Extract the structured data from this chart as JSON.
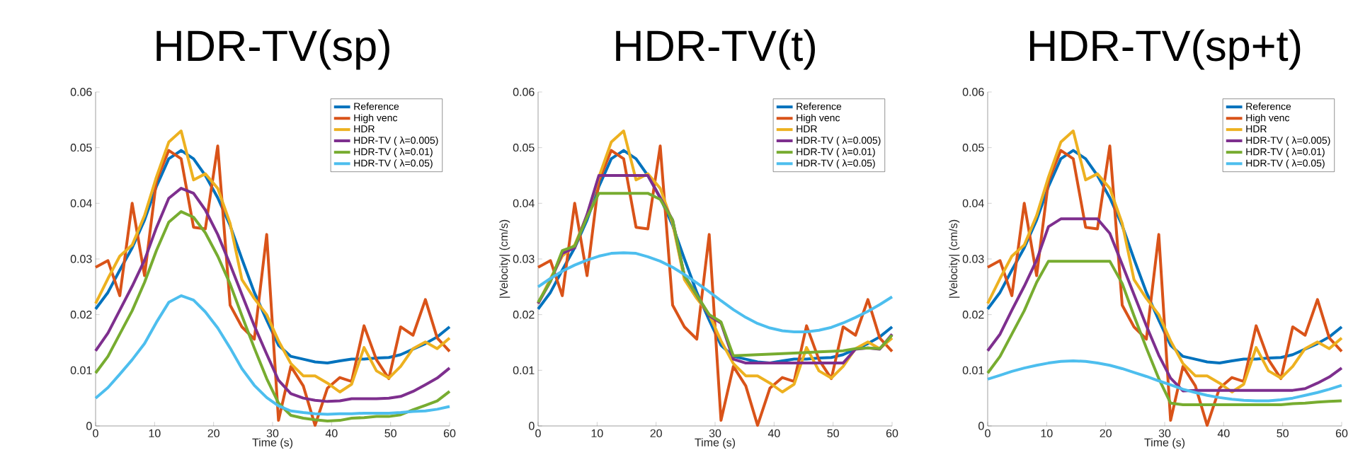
{
  "chart_data": [
    {
      "type": "line",
      "title": "HDR-TV(sp)",
      "xlabel": "Time (s)",
      "legend": "top right",
      "x": [
        0,
        2.1,
        4.1,
        6.2,
        8.3,
        10.3,
        12.4,
        14.5,
        16.6,
        18.6,
        20.7,
        22.8,
        24.8,
        26.9,
        29,
        31,
        33.1,
        35.2,
        37.2,
        39.3,
        41.4,
        43.4,
        45.5,
        47.6,
        49.7,
        51.7,
        53.8,
        55.9,
        57.9,
        60
      ],
      "xlim": [
        0,
        60
      ],
      "ylim": [
        0,
        0.06
      ],
      "xticks": [
        0,
        10,
        20,
        30,
        40,
        50,
        60
      ],
      "yticks": [
        0,
        0.01,
        0.02,
        0.03,
        0.04,
        0.05,
        0.06
      ],
      "series": [
        {
          "name": "Reference",
          "color": "#0072bd",
          "values": [
            0.021,
            0.024,
            0.028,
            0.032,
            0.037,
            0.043,
            0.048,
            0.0495,
            0.048,
            0.045,
            0.041,
            0.036,
            0.03,
            0.024,
            0.019,
            0.0145,
            0.0125,
            0.012,
            0.0115,
            0.0113,
            0.0117,
            0.012,
            0.012,
            0.0122,
            0.0123,
            0.0128,
            0.0138,
            0.0148,
            0.016,
            0.0178
          ]
        },
        {
          "name": "High venc",
          "color": "#d95319",
          "values": [
            0.0285,
            0.0297,
            0.0234,
            0.04,
            0.027,
            0.044,
            0.0495,
            0.048,
            0.0357,
            0.0354,
            0.0503,
            0.0217,
            0.0178,
            0.0156,
            0.0344,
            0.001,
            0.0107,
            0.0072,
            0.0001,
            0.0068,
            0.0087,
            0.008,
            0.018,
            0.0119,
            0.0085,
            0.0178,
            0.0163,
            0.0227,
            0.0158,
            0.0134
          ]
        },
        {
          "name": "HDR",
          "color": "#edb120",
          "values": [
            0.022,
            0.0265,
            0.0305,
            0.0325,
            0.0378,
            0.0447,
            0.051,
            0.053,
            0.0442,
            0.0453,
            0.0427,
            0.0364,
            0.0263,
            0.0229,
            0.02,
            0.0153,
            0.0112,
            0.009,
            0.009,
            0.0077,
            0.0061,
            0.0075,
            0.0141,
            0.0099,
            0.0086,
            0.0107,
            0.0139,
            0.0151,
            0.0139,
            0.0158
          ]
        },
        {
          "name": "HDR-TV ( λ=0.005)",
          "color": "#7e2f8e",
          "values": [
            0.0135,
            0.0167,
            0.0208,
            0.0251,
            0.0298,
            0.0356,
            0.0409,
            0.0427,
            0.0418,
            0.0388,
            0.0344,
            0.029,
            0.0236,
            0.018,
            0.0129,
            0.0082,
            0.0058,
            0.005,
            0.0046,
            0.0044,
            0.0045,
            0.0049,
            0.0049,
            0.0049,
            0.005,
            0.0053,
            0.0062,
            0.0074,
            0.0086,
            0.0104
          ]
        },
        {
          "name": "HDR-TV ( λ=0.01)",
          "color": "#77ac30",
          "values": [
            0.0095,
            0.0125,
            0.0165,
            0.0207,
            0.0258,
            0.0315,
            0.0366,
            0.0385,
            0.0375,
            0.0347,
            0.0305,
            0.0255,
            0.0198,
            0.014,
            0.0085,
            0.0041,
            0.0019,
            0.0014,
            0.0011,
            0.0009,
            0.001,
            0.0014,
            0.0015,
            0.0017,
            0.0017,
            0.002,
            0.0029,
            0.0037,
            0.0045,
            0.0062
          ]
        },
        {
          "name": "HDR-TV ( λ=0.05)",
          "color": "#4dbeee",
          "values": [
            0.005,
            0.0069,
            0.0093,
            0.0119,
            0.0148,
            0.0186,
            0.0222,
            0.0234,
            0.0226,
            0.0205,
            0.0176,
            0.014,
            0.0103,
            0.0073,
            0.0051,
            0.0036,
            0.0027,
            0.0024,
            0.0022,
            0.0021,
            0.0022,
            0.0022,
            0.0023,
            0.0023,
            0.0023,
            0.0024,
            0.0026,
            0.0027,
            0.003,
            0.0035
          ]
        }
      ]
    },
    {
      "type": "line",
      "title": "HDR-TV(t)",
      "xlabel": "Time (s)",
      "ylabel": "|Velocity| (cm/s)",
      "legend": "top right",
      "x": [
        0,
        2.1,
        4.1,
        6.2,
        8.3,
        10.3,
        12.4,
        14.5,
        16.6,
        18.6,
        20.7,
        22.8,
        24.8,
        26.9,
        29,
        31,
        33.1,
        35.2,
        37.2,
        39.3,
        41.4,
        43.4,
        45.5,
        47.6,
        49.7,
        51.7,
        53.8,
        55.9,
        57.9,
        60
      ],
      "xlim": [
        0,
        60
      ],
      "ylim": [
        0,
        0.06
      ],
      "xticks": [
        0,
        10,
        20,
        30,
        40,
        50,
        60
      ],
      "yticks": [
        0,
        0.01,
        0.02,
        0.03,
        0.04,
        0.05,
        0.06
      ],
      "series": [
        {
          "name": "Reference",
          "color": "#0072bd",
          "values": [
            0.021,
            0.024,
            0.028,
            0.032,
            0.037,
            0.043,
            0.048,
            0.0495,
            0.048,
            0.045,
            0.041,
            0.036,
            0.03,
            0.024,
            0.019,
            0.0145,
            0.0125,
            0.012,
            0.0115,
            0.0113,
            0.0117,
            0.012,
            0.012,
            0.0122,
            0.0123,
            0.0128,
            0.0138,
            0.0148,
            0.016,
            0.0178
          ]
        },
        {
          "name": "High venc",
          "color": "#d95319",
          "values": [
            0.0285,
            0.0297,
            0.0234,
            0.04,
            0.027,
            0.044,
            0.0495,
            0.048,
            0.0357,
            0.0354,
            0.0503,
            0.0217,
            0.0178,
            0.0156,
            0.0344,
            0.001,
            0.0107,
            0.0072,
            0.0001,
            0.0068,
            0.0087,
            0.008,
            0.018,
            0.0119,
            0.0085,
            0.0178,
            0.0163,
            0.0227,
            0.0158,
            0.0134
          ]
        },
        {
          "name": "HDR",
          "color": "#edb120",
          "values": [
            0.022,
            0.0265,
            0.0305,
            0.0325,
            0.0378,
            0.0447,
            0.051,
            0.053,
            0.0442,
            0.0453,
            0.0427,
            0.0364,
            0.0263,
            0.0229,
            0.02,
            0.0153,
            0.0112,
            0.009,
            0.009,
            0.0077,
            0.0061,
            0.0075,
            0.0141,
            0.0099,
            0.0086,
            0.0107,
            0.0139,
            0.0151,
            0.0139,
            0.0158
          ]
        },
        {
          "name": "HDR-TV ( λ=0.005)",
          "color": "#7e2f8e",
          "values": [
            0.022,
            0.026,
            0.031,
            0.032,
            0.038,
            0.045,
            0.045,
            0.045,
            0.045,
            0.045,
            0.041,
            0.037,
            0.027,
            0.0235,
            0.0198,
            0.0185,
            0.012,
            0.0113,
            0.0113,
            0.0113,
            0.0113,
            0.0113,
            0.0113,
            0.0113,
            0.0113,
            0.0113,
            0.0138,
            0.014,
            0.0138,
            0.0165
          ]
        },
        {
          "name": "HDR-TV ( λ=0.01)",
          "color": "#77ac30",
          "values": [
            0.0222,
            0.026,
            0.0315,
            0.0323,
            0.0375,
            0.0418,
            0.0418,
            0.0418,
            0.0418,
            0.0418,
            0.0407,
            0.037,
            0.027,
            0.0235,
            0.02,
            0.0187,
            0.0126,
            0.0127,
            0.0128,
            0.0129,
            0.013,
            0.0131,
            0.0132,
            0.0133,
            0.0134,
            0.0135,
            0.0139,
            0.014,
            0.0139,
            0.0163
          ]
        },
        {
          "name": "HDR-TV ( λ=0.05)",
          "color": "#4dbeee",
          "values": [
            0.025,
            0.0265,
            0.0278,
            0.0289,
            0.0298,
            0.0305,
            0.031,
            0.0311,
            0.031,
            0.0304,
            0.0296,
            0.0285,
            0.0272,
            0.0257,
            0.0241,
            0.0225,
            0.0209,
            0.0195,
            0.0184,
            0.0176,
            0.0171,
            0.0169,
            0.0169,
            0.0172,
            0.0177,
            0.0185,
            0.0195,
            0.0206,
            0.0218,
            0.0232
          ]
        }
      ]
    },
    {
      "type": "line",
      "title": "HDR-TV(sp+t)",
      "xlabel": "Time (s)",
      "ylabel": "|Velocity| (cm/s)",
      "legend": "top right",
      "x": [
        0,
        2.1,
        4.1,
        6.2,
        8.3,
        10.3,
        12.4,
        14.5,
        16.6,
        18.6,
        20.7,
        22.8,
        24.8,
        26.9,
        29,
        31,
        33.1,
        35.2,
        37.2,
        39.3,
        41.4,
        43.4,
        45.5,
        47.6,
        49.7,
        51.7,
        53.8,
        55.9,
        57.9,
        60
      ],
      "xlim": [
        0,
        60
      ],
      "ylim": [
        0,
        0.06
      ],
      "xticks": [
        0,
        10,
        20,
        30,
        40,
        50,
        60
      ],
      "yticks": [
        0,
        0.01,
        0.02,
        0.03,
        0.04,
        0.05,
        0.06
      ],
      "series": [
        {
          "name": "Reference",
          "color": "#0072bd",
          "values": [
            0.021,
            0.024,
            0.028,
            0.032,
            0.037,
            0.043,
            0.048,
            0.0495,
            0.048,
            0.045,
            0.041,
            0.036,
            0.03,
            0.024,
            0.019,
            0.0145,
            0.0125,
            0.012,
            0.0115,
            0.0113,
            0.0117,
            0.012,
            0.012,
            0.0122,
            0.0123,
            0.0128,
            0.0138,
            0.0148,
            0.016,
            0.0178
          ]
        },
        {
          "name": "High venc",
          "color": "#d95319",
          "values": [
            0.0285,
            0.0297,
            0.0234,
            0.04,
            0.027,
            0.044,
            0.0495,
            0.048,
            0.0357,
            0.0354,
            0.0503,
            0.0217,
            0.0178,
            0.0156,
            0.0344,
            0.001,
            0.0107,
            0.0072,
            0.0001,
            0.0068,
            0.0087,
            0.008,
            0.018,
            0.0119,
            0.0085,
            0.0178,
            0.0163,
            0.0227,
            0.0158,
            0.0134
          ]
        },
        {
          "name": "HDR",
          "color": "#edb120",
          "values": [
            0.022,
            0.0265,
            0.0305,
            0.0325,
            0.0378,
            0.0447,
            0.051,
            0.053,
            0.0442,
            0.0453,
            0.0427,
            0.0364,
            0.0263,
            0.0229,
            0.02,
            0.0153,
            0.0112,
            0.009,
            0.009,
            0.0077,
            0.0061,
            0.0075,
            0.0141,
            0.0099,
            0.0086,
            0.0107,
            0.0139,
            0.0151,
            0.0139,
            0.0158
          ]
        },
        {
          "name": "HDR-TV ( λ=0.005)",
          "color": "#7e2f8e",
          "values": [
            0.0135,
            0.0165,
            0.0208,
            0.0251,
            0.0298,
            0.0358,
            0.0372,
            0.0372,
            0.0372,
            0.0372,
            0.0346,
            0.029,
            0.0236,
            0.018,
            0.0127,
            0.0086,
            0.0063,
            0.0064,
            0.0064,
            0.0064,
            0.0064,
            0.0064,
            0.0064,
            0.0064,
            0.0064,
            0.0064,
            0.0067,
            0.0077,
            0.0088,
            0.0104
          ]
        },
        {
          "name": "HDR-TV ( λ=0.01)",
          "color": "#77ac30",
          "values": [
            0.0095,
            0.0125,
            0.0165,
            0.0207,
            0.0258,
            0.0296,
            0.0296,
            0.0296,
            0.0296,
            0.0296,
            0.0296,
            0.0256,
            0.0198,
            0.014,
            0.0085,
            0.0041,
            0.0038,
            0.0038,
            0.0038,
            0.0038,
            0.0038,
            0.0038,
            0.0038,
            0.0038,
            0.0038,
            0.004,
            0.0041,
            0.0043,
            0.0044,
            0.0045
          ]
        },
        {
          "name": "HDR-TV ( λ=0.05)",
          "color": "#4dbeee",
          "values": [
            0.0084,
            0.0091,
            0.0098,
            0.0104,
            0.0109,
            0.0113,
            0.0116,
            0.0117,
            0.0116,
            0.0113,
            0.0109,
            0.0103,
            0.0096,
            0.0089,
            0.0081,
            0.0074,
            0.0066,
            0.006,
            0.0055,
            0.0051,
            0.0048,
            0.0046,
            0.0045,
            0.0045,
            0.0047,
            0.005,
            0.0055,
            0.006,
            0.0066,
            0.0073
          ]
        }
      ]
    }
  ]
}
